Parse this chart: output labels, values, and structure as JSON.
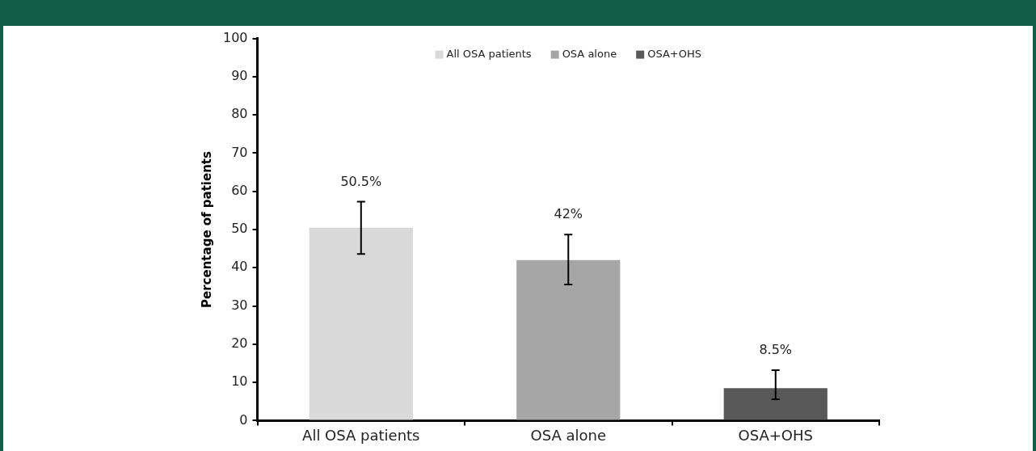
{
  "chart_data": {
    "type": "bar",
    "ylabel": "Percentage of patients",
    "categories": [
      "All OSA patients",
      "OSA alone",
      "OSA+OHS"
    ],
    "series": [
      {
        "name": "All OSA patients",
        "color": "#d9d9d9",
        "values": [
          50.5,
          null,
          null
        ],
        "errors": [
          [
            43.6,
            57.3
          ],
          null,
          null
        ],
        "value_labels": [
          "50.5%",
          null,
          null
        ]
      },
      {
        "name": "OSA alone",
        "color": "#a6a6a6",
        "values": [
          null,
          42,
          null
        ],
        "errors": [
          null,
          [
            35.6,
            48.7
          ],
          null
        ],
        "value_labels": [
          null,
          "42%",
          null
        ]
      },
      {
        "name": "OSA+OHS",
        "color": "#595959",
        "values": [
          null,
          null,
          8.5
        ],
        "errors": [
          null,
          null,
          [
            5.6,
            13.2
          ]
        ],
        "value_labels": [
          null,
          null,
          "8.5%"
        ]
      }
    ],
    "ylim": [
      0,
      100
    ],
    "yticks": [
      0,
      10,
      20,
      30,
      40,
      50,
      60,
      70,
      80,
      90,
      100
    ],
    "legend": "top"
  }
}
